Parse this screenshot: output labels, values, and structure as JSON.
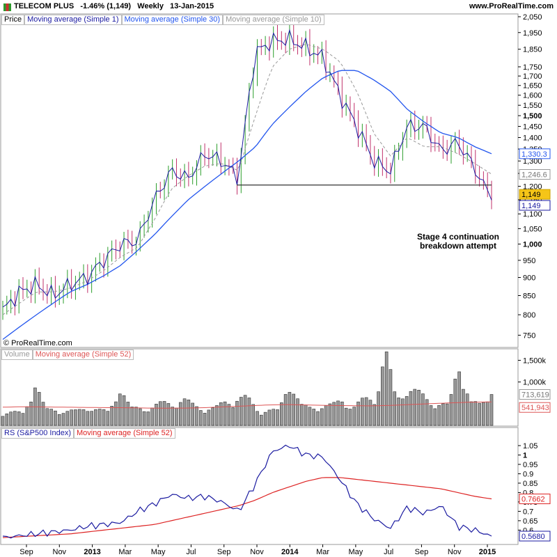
{
  "header": {
    "title": "TELECOM PLUS   -1.46% (1,149)   Weekly   13-Jan-2015",
    "site": "www.ProRealTime.com"
  },
  "copyright": "© ProRealTime.com",
  "price_panel": {
    "legend": [
      "Price",
      "Moving average (Simple 1)",
      "Moving average (Simple 30)",
      "Moving average (Simple 10)"
    ],
    "legend_colors": [
      "#000000",
      "#1a1aa0",
      "#2255ee",
      "#999999"
    ],
    "annotation_line1": "Stage 4 continuation",
    "annotation_line2": "breakdown attempt",
    "support_level": 1205,
    "badges": {
      "ma30": "1,330.3",
      "ma10": "1,246.6",
      "price": "1,149",
      "ma1": "1,149"
    }
  },
  "volume_panel": {
    "legend": [
      "Volume",
      "Moving average (Simple 52)"
    ],
    "legend_colors": [
      "#999999",
      "#dd5555"
    ],
    "badges": {
      "volume": "713,619",
      "ma52": "541,943"
    }
  },
  "rs_panel": {
    "legend": [
      "RS (S&P500 Index)",
      "Moving average (Simple 52)"
    ],
    "legend_colors": [
      "#1a1aa0",
      "#dd2222"
    ],
    "badges": {
      "ma52": "0.7662",
      "rs": "0.5680"
    }
  },
  "x_axis": {
    "labels": [
      "Sep",
      "Nov",
      "2013",
      "Mar",
      "May",
      "Jul",
      "Sep",
      "Nov",
      "2014",
      "Mar",
      "May",
      "Jul",
      "Sep",
      "Nov",
      "2015"
    ],
    "bold": [
      "2013",
      "2014",
      "2015"
    ]
  },
  "colors": {
    "up": "#2a9d2a",
    "down": "#c0306a",
    "ma30": "#2255ee",
    "ma1": "#1a1aa0",
    "ma10": "#999999",
    "vol_ma": "#dd5555",
    "rs": "#1a1aa0",
    "rs_ma": "#dd2222",
    "badge_price": "#f5c518"
  },
  "chart_data": [
    {
      "type": "line",
      "title": "TELECOM PLUS Weekly",
      "x": [
        "2012-08",
        "2012-09",
        "2012-10",
        "2012-11",
        "2012-12",
        "2013-01",
        "2013-02",
        "2013-03",
        "2013-04",
        "2013-05",
        "2013-06",
        "2013-07",
        "2013-08",
        "2013-09",
        "2013-10",
        "2013-11",
        "2013-12",
        "2014-01",
        "2014-02",
        "2014-03",
        "2014-04",
        "2014-05",
        "2014-06",
        "2014-07",
        "2014-08",
        "2014-09",
        "2014-10",
        "2014-11",
        "2014-12",
        "2015-01"
      ],
      "series": [
        {
          "name": "Price",
          "values": [
            810,
            860,
            880,
            850,
            880,
            900,
            950,
            1000,
            1010,
            1150,
            1260,
            1230,
            1330,
            1300,
            1230,
            1830,
            1900,
            1910,
            1860,
            1800,
            1600,
            1450,
            1300,
            1260,
            1450,
            1450,
            1340,
            1380,
            1270,
            1149
          ]
        },
        {
          "name": "Moving average (Simple 30)",
          "values": [
            740,
            770,
            800,
            830,
            860,
            880,
            905,
            935,
            980,
            1030,
            1090,
            1150,
            1200,
            1250,
            1300,
            1360,
            1460,
            1540,
            1620,
            1690,
            1730,
            1730,
            1680,
            1620,
            1530,
            1470,
            1420,
            1400,
            1360,
            1330
          ]
        },
        {
          "name": "Moving average (Simple 10)",
          "values": [
            800,
            830,
            860,
            860,
            870,
            890,
            920,
            960,
            990,
            1080,
            1190,
            1240,
            1280,
            1290,
            1260,
            1500,
            1750,
            1850,
            1880,
            1850,
            1780,
            1620,
            1420,
            1320,
            1400,
            1360,
            1360,
            1330,
            1290,
            1247
          ]
        }
      ],
      "ylim": [
        720,
        2050
      ]
    },
    {
      "type": "bar",
      "title": "Volume",
      "series": [
        {
          "name": "Volume",
          "values": [
            300000,
            280000,
            250000,
            1000000,
            320000,
            350000,
            310000,
            300000,
            420000,
            330000,
            280000,
            900000,
            350000,
            380000,
            400000,
            470000,
            500000,
            560000,
            420000,
            380000,
            360000,
            520000,
            600000,
            580000,
            340000,
            330000,
            300000,
            1050000,
            420000,
            370000,
            450000,
            420000,
            560000,
            400000,
            550000,
            600000,
            1600000,
            540000,
            850000,
            700000,
            560000,
            480000,
            400000,
            1450000,
            500000,
            420000,
            713619
          ]
        },
        {
          "name": "Moving average (Simple 52)",
          "values": [
            420000,
            430000,
            425000,
            420000,
            415000,
            410000,
            408000,
            400000,
            398000,
            400000,
            410000,
            430000,
            450000,
            470000,
            480000,
            470000,
            460000,
            455000,
            450000,
            460000,
            480000,
            500000,
            520000,
            535000,
            541943
          ]
        }
      ],
      "ylim": [
        0,
        1700000
      ]
    },
    {
      "type": "line",
      "title": "RS (S&P500 Index)",
      "series": [
        {
          "name": "RS (S&P500 Index)",
          "values": [
            0.56,
            0.57,
            0.58,
            0.59,
            0.6,
            0.62,
            0.63,
            0.64,
            0.7,
            0.74,
            0.79,
            0.77,
            0.78,
            0.75,
            0.7,
            0.85,
            1.02,
            1.05,
            1.0,
            0.99,
            0.87,
            0.74,
            0.66,
            0.61,
            0.72,
            0.69,
            0.73,
            0.62,
            0.6,
            0.568
          ]
        },
        {
          "name": "Moving average (Simple 52)",
          "values": [
            0.56,
            0.565,
            0.57,
            0.575,
            0.58,
            0.59,
            0.6,
            0.61,
            0.62,
            0.63,
            0.65,
            0.67,
            0.69,
            0.71,
            0.73,
            0.76,
            0.8,
            0.83,
            0.86,
            0.88,
            0.88,
            0.87,
            0.86,
            0.85,
            0.84,
            0.83,
            0.82,
            0.8,
            0.78,
            0.7662
          ]
        }
      ],
      "ylim": [
        0.54,
        1.08
      ]
    }
  ],
  "price_axis": [
    "2,050",
    "1,950",
    "1,850",
    "1,750",
    "1,700",
    "1,650",
    "1,600",
    "1,550",
    "1,500",
    "1,450",
    "1,400",
    "1,350",
    "1,300",
    "1,250",
    "1,200",
    "1,150",
    "1,100",
    "1,050",
    "1,000",
    "950",
    "900",
    "850",
    "800",
    "750"
  ],
  "volume_axis": [
    "1,500k",
    "1,000k"
  ],
  "rs_axis": [
    "1.05",
    "1",
    "0.95",
    "0.9",
    "0.85",
    "0.8",
    "0.75",
    "0.7",
    "0.65",
    "0.6"
  ]
}
